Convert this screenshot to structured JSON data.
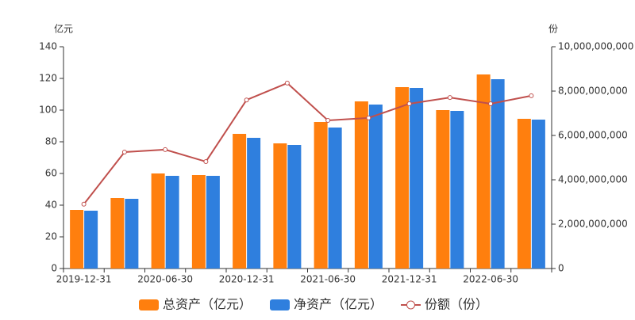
{
  "chart_data": {
    "type": "bar-line",
    "y_axis_label": "亿元",
    "y2_axis_label": "份",
    "categories": [
      "2019-12-31",
      null,
      "2020-06-30",
      null,
      "2020-12-31",
      null,
      "2021-06-30",
      null,
      "2021-12-31",
      null,
      "2022-06-30",
      null
    ],
    "series": [
      {
        "name": "总资产（亿元）",
        "type": "bar",
        "color": "#ff7f0e",
        "values": [
          37,
          44.5,
          60,
          59,
          85,
          79,
          92.5,
          105.5,
          114.5,
          100,
          122.5,
          94.5
        ]
      },
      {
        "name": "净资产（亿元）",
        "type": "bar",
        "color": "#2f7fde",
        "values": [
          36.5,
          44,
          58.5,
          58.5,
          82.5,
          78,
          89,
          103.5,
          114,
          99.5,
          119.5,
          94
        ]
      },
      {
        "name": "份额（份）",
        "type": "line",
        "axis": "y2",
        "color": "#c0504d",
        "values": [
          2900000000,
          5250000000,
          5360000000,
          4820000000,
          7600000000,
          8360000000,
          6680000000,
          6790000000,
          7430000000,
          7710000000,
          7430000000,
          7790000000
        ]
      }
    ],
    "ylim": [
      0,
      140
    ],
    "yticks": [
      0,
      20,
      40,
      60,
      80,
      100,
      120,
      140
    ],
    "y2lim": [
      0,
      10000000000
    ],
    "y2ticks": [
      0,
      {
        "value": 2000000000,
        "label": "2,000,000,000"
      },
      {
        "value": 4000000000,
        "label": "4,000,000,000"
      },
      {
        "value": 6000000000,
        "label": "6,000,000,000"
      },
      {
        "value": 8000000000,
        "label": "8,000,000,000"
      },
      {
        "value": 10000000000,
        "label": "10,000,000,000"
      }
    ],
    "legend": "bottom"
  }
}
